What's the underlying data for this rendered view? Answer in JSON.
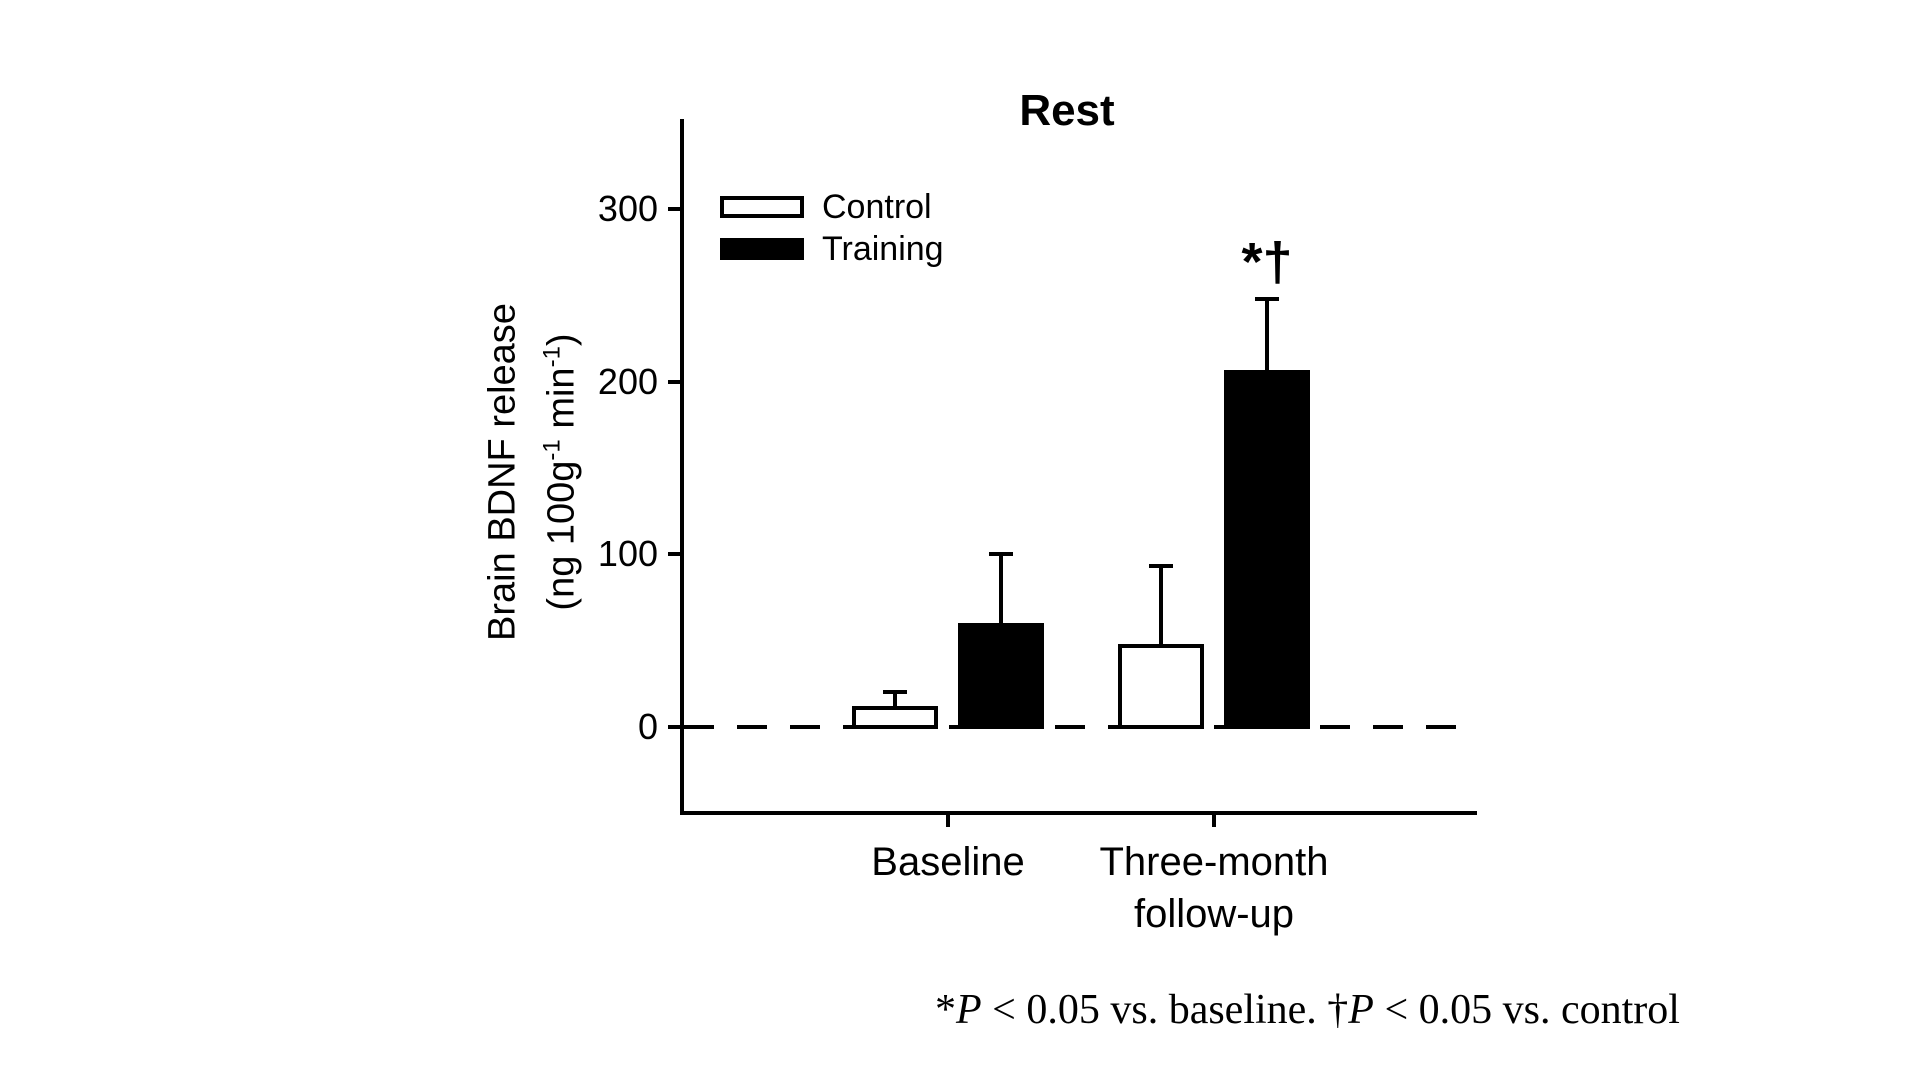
{
  "chart_data": {
    "type": "bar",
    "title": "Rest",
    "categories": [
      "Baseline",
      "Three-month follow-up"
    ],
    "category_label_lines": [
      [
        "Baseline"
      ],
      [
        "Three-month",
        "follow-up"
      ]
    ],
    "series": [
      {
        "name": "Control",
        "fill": "#ffffff",
        "values": [
          12,
          48
        ],
        "errors_up": [
          8,
          45
        ]
      },
      {
        "name": "Training",
        "fill": "#000000",
        "values": [
          60,
          207
        ],
        "errors_up": [
          40,
          41
        ]
      }
    ],
    "ylabel_line1": "Brain BDNF release",
    "ylabel_line2_parts": [
      "(ng 100g",
      "-1",
      " min",
      "-1",
      ")"
    ],
    "yticks": [
      0,
      100,
      200,
      300
    ],
    "ylim": [
      -50,
      352
    ],
    "grid": false,
    "legend_position": "upper-left-inside",
    "annotation": {
      "text": "*†",
      "category_index": 1,
      "series_index": 1
    },
    "zero_line_style": "dashed"
  },
  "footnote": {
    "segments": [
      "*",
      "P",
      " < 0.05 vs. baseline. ",
      "†",
      "P",
      " < 0.05 vs. control"
    ]
  }
}
